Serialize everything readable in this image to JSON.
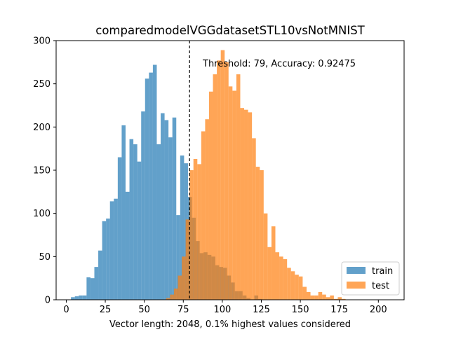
{
  "chart_data": {
    "type": "histogram",
    "title": "comparedmodelVGGdatasetSTL10vsNotMNIST",
    "xlabel": "Vector length: 2048, 0.1% highest values considered",
    "ylabel": "",
    "xlim": [
      -6.5,
      216.5
    ],
    "ylim": [
      0,
      300
    ],
    "xticks": [
      0,
      25,
      50,
      75,
      100,
      125,
      150,
      175,
      200
    ],
    "yticks": [
      0,
      50,
      100,
      150,
      200,
      250,
      300
    ],
    "grid": false,
    "legend_position": "lower right",
    "annotation": "Threshold: 79, Accuracy: 0.92475",
    "threshold": 79,
    "bin_width": 2.5,
    "series": [
      {
        "name": "train",
        "color": "#1f77b4",
        "bins_start": 3,
        "counts": [
          3,
          4,
          5,
          5,
          26,
          25,
          38,
          57,
          91,
          94,
          114,
          117,
          165,
          202,
          125,
          186,
          180,
          160,
          218,
          256,
          263,
          272,
          180,
          216,
          208,
          188,
          211,
          98,
          167,
          158,
          119,
          95,
          68,
          54,
          55,
          52,
          50,
          40,
          38,
          37,
          28,
          20,
          10,
          10,
          5,
          2,
          0,
          5,
          1
        ]
      },
      {
        "name": "test",
        "color": "#ff7f0e",
        "bins_start": 64,
        "counts": [
          2,
          6,
          13,
          28,
          50,
          93,
          150,
          163,
          157,
          195,
          209,
          241,
          261,
          277,
          289,
          275,
          247,
          242,
          261,
          222,
          220,
          217,
          187,
          154,
          150,
          100,
          61,
          85,
          55,
          50,
          47,
          37,
          33,
          29,
          27,
          15,
          9,
          5,
          5,
          9,
          6,
          3,
          5,
          1,
          3,
          1
        ]
      }
    ]
  }
}
